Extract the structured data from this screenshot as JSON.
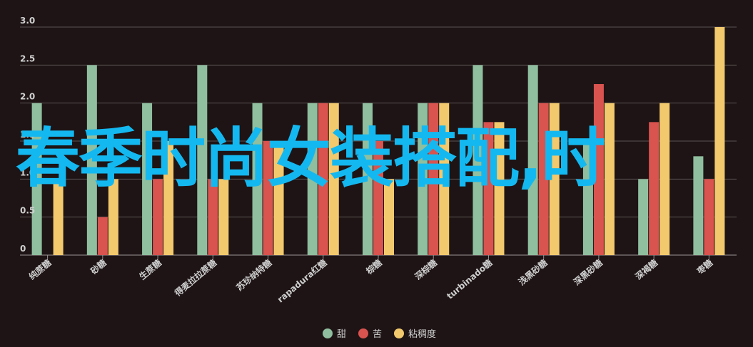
{
  "chart_data": {
    "type": "bar",
    "categories": [
      "纯蔗糖",
      "砂糖",
      "生蔗糖",
      "得麦拉拉蔗糖",
      "苏珍纳特糖",
      "rapadura红糖",
      "棕糖",
      "深棕糖",
      "turbinado糖",
      "浅黑砂糖",
      "深黑砂糖",
      "深褐糖",
      "枣糖"
    ],
    "series": [
      {
        "name": "甜",
        "color": "#8fbf9f",
        "values": [
          2.0,
          2.5,
          2.0,
          2.5,
          2.0,
          2.0,
          2.0,
          2.0,
          2.5,
          2.5,
          1.5,
          1.0,
          1.3
        ]
      },
      {
        "name": "苦",
        "color": "#d9534f",
        "values": [
          0,
          0.5,
          1.0,
          1.0,
          1.5,
          2.0,
          1.5,
          2.0,
          1.75,
          2.0,
          2.25,
          1.75,
          1.0
        ]
      },
      {
        "name": "粘稠度",
        "color": "#f2c96d",
        "values": [
          1.0,
          1.0,
          1.5,
          1.0,
          1.5,
          2.0,
          1.0,
          2.0,
          1.75,
          2.0,
          2.0,
          2.0,
          3.0
        ]
      }
    ],
    "yticks": [
      "0",
      "0.5",
      "1.0",
      "1.5",
      "2.0",
      "2.5",
      "3.0"
    ],
    "ylim": [
      0,
      3.0
    ],
    "grid": true,
    "legend_position": "bottom-center",
    "colors": {
      "background": "#1e1415",
      "grid": "#5a5254",
      "text": "#cfcfcf"
    }
  },
  "overlay": {
    "text": "春季时尚女装搭配,时",
    "color": "#14b8f0"
  }
}
